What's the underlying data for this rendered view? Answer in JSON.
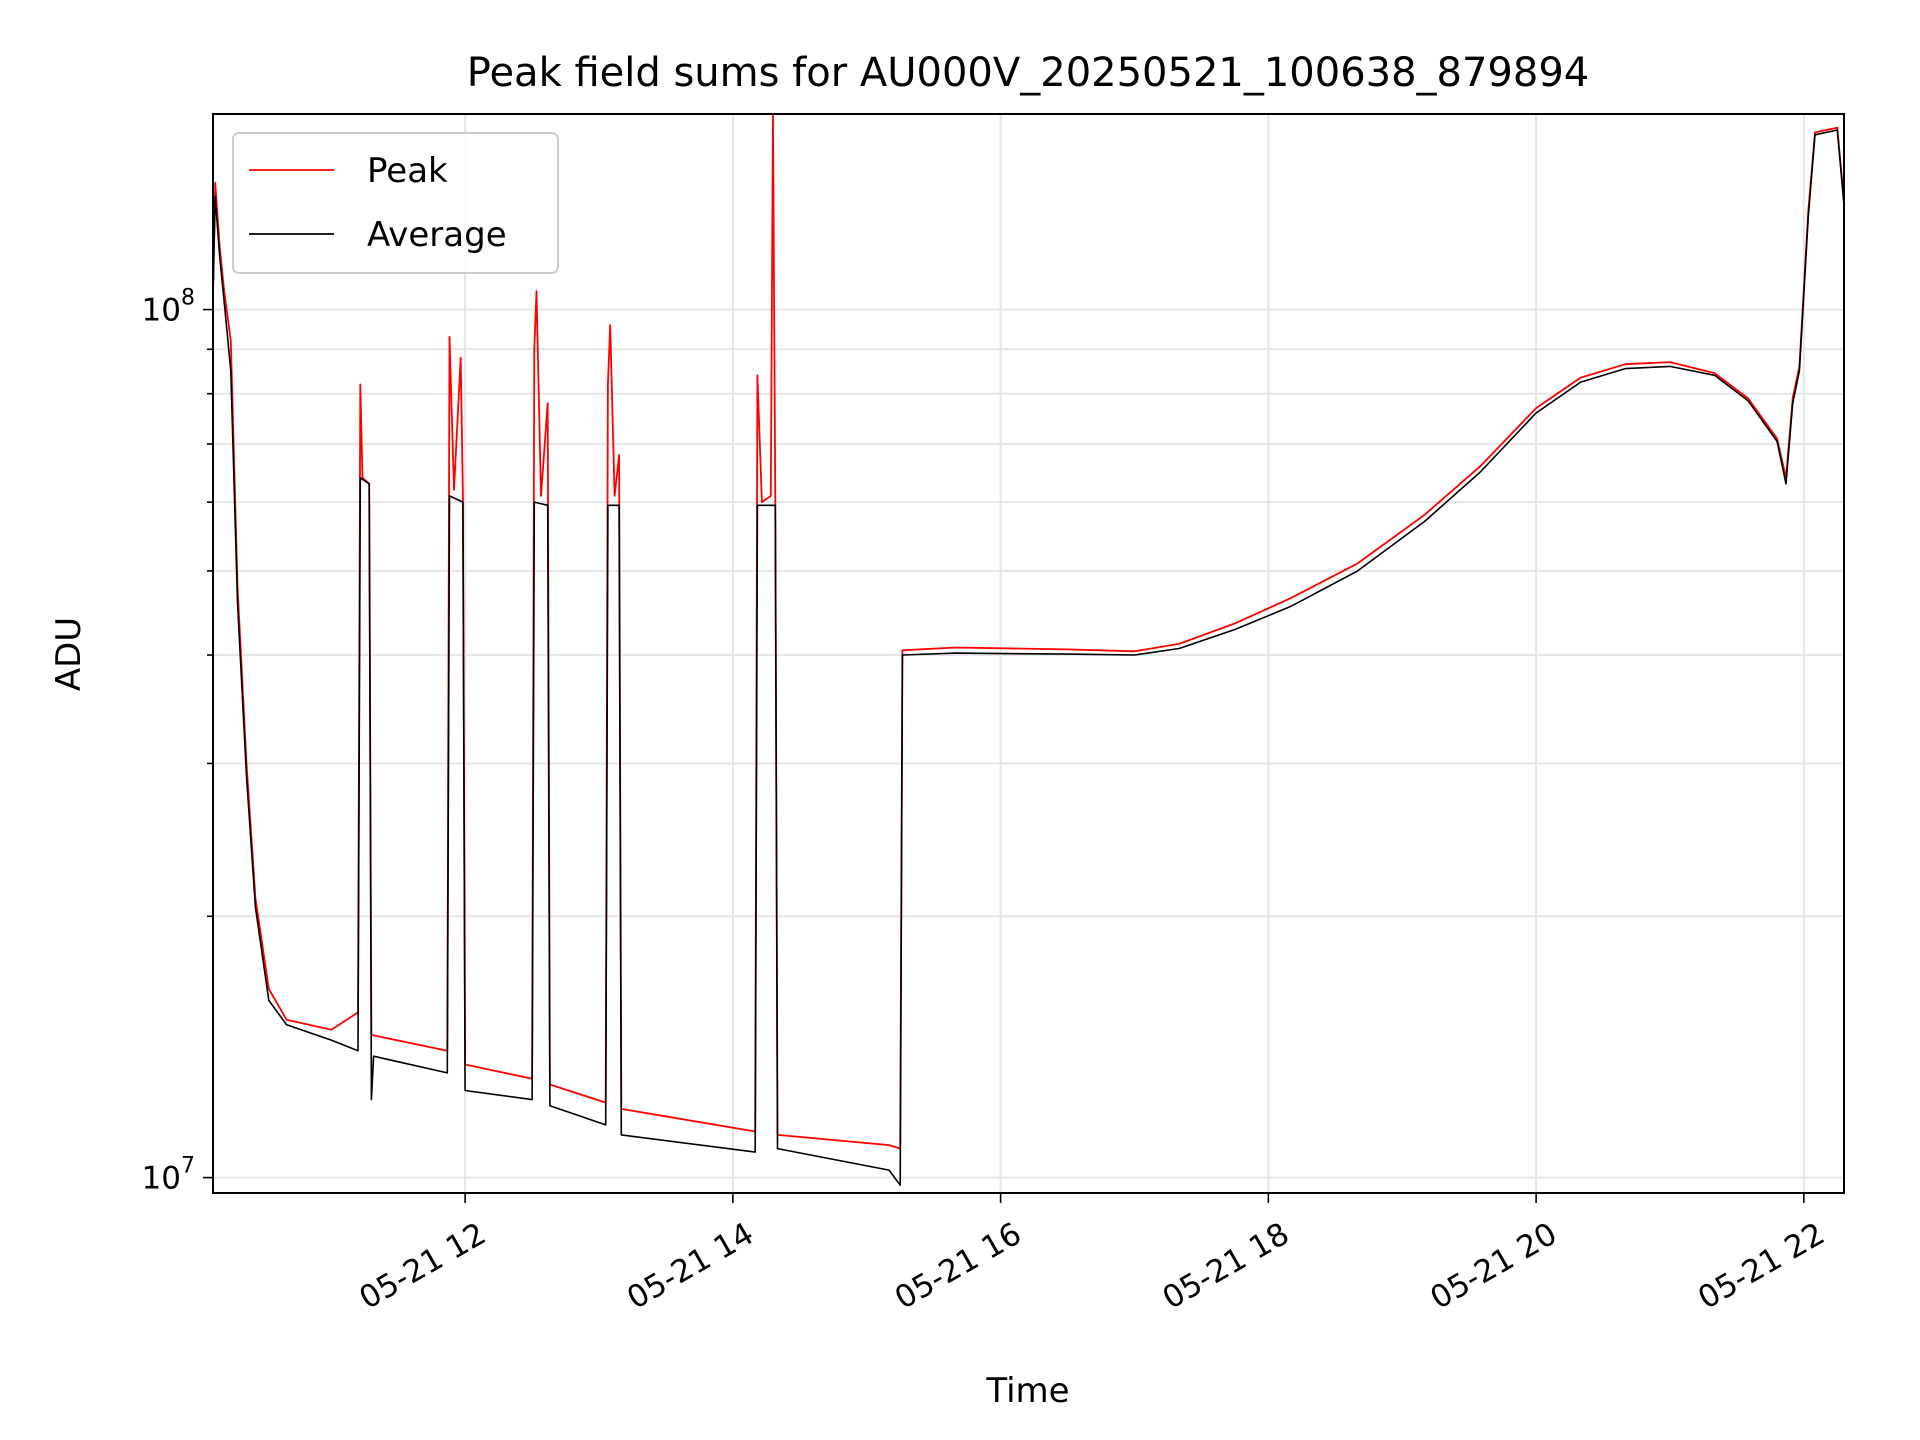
{
  "chart_data": {
    "type": "line",
    "title": "Peak field sums for AU000V_20250521_100638_879894",
    "xlabel": "Time",
    "ylabel": "ADU",
    "yscale": "log",
    "xlim": [
      "05-21 10:07",
      "05-21 22:18"
    ],
    "ylim": [
      9600000,
      168000000
    ],
    "x_ticks": [
      {
        "at": "05-21 12:00",
        "label": "05-21 12"
      },
      {
        "at": "05-21 14:00",
        "label": "05-21 14"
      },
      {
        "at": "05-21 16:00",
        "label": "05-21 16"
      },
      {
        "at": "05-21 18:00",
        "label": "05-21 18"
      },
      {
        "at": "05-21 20:00",
        "label": "05-21 20"
      },
      {
        "at": "05-21 22:00",
        "label": "05-21 22"
      }
    ],
    "y_major_ticks": [
      {
        "value": 10000000,
        "base": "10",
        "exp": "7"
      },
      {
        "value": 100000000,
        "base": "10",
        "exp": "8"
      }
    ],
    "y_minor_ticks": [
      20000000,
      30000000,
      40000000,
      50000000,
      60000000,
      70000000,
      80000000,
      90000000
    ],
    "grid": true,
    "legend": {
      "position": "top-left"
    },
    "series": [
      {
        "name": "Peak",
        "color": "#ff0000",
        "points": [
          [
            "05-21 10:07",
            105000000
          ],
          [
            "05-21 10:08",
            140000000
          ],
          [
            "05-21 10:10",
            118000000
          ],
          [
            "05-21 10:12",
            105000000
          ],
          [
            "05-21 10:15",
            92000000
          ],
          [
            "05-21 10:18",
            48000000
          ],
          [
            "05-21 10:22",
            30000000
          ],
          [
            "05-21 10:26",
            21000000
          ],
          [
            "05-21 10:32",
            16500000
          ],
          [
            "05-21 10:40",
            15200000
          ],
          [
            "05-21 11:00",
            14800000
          ],
          [
            "05-21 11:12",
            15500000
          ],
          [
            "05-21 11:13",
            82000000
          ],
          [
            "05-21 11:14",
            64000000
          ],
          [
            "05-21 11:17",
            63000000
          ],
          [
            "05-21 11:18",
            14600000
          ],
          [
            "05-21 11:52",
            14000000
          ],
          [
            "05-21 11:53",
            93000000
          ],
          [
            "05-21 11:55",
            62000000
          ],
          [
            "05-21 11:58",
            88000000
          ],
          [
            "05-21 11:59",
            61000000
          ],
          [
            "05-21 12:00",
            13500000
          ],
          [
            "05-21 12:30",
            13000000
          ],
          [
            "05-21 12:31",
            90000000
          ],
          [
            "05-21 12:32",
            105000000
          ],
          [
            "05-21 12:34",
            61000000
          ],
          [
            "05-21 12:37",
            78000000
          ],
          [
            "05-21 12:38",
            12800000
          ],
          [
            "05-21 13:03",
            12200000
          ],
          [
            "05-21 13:04",
            82000000
          ],
          [
            "05-21 13:05",
            96000000
          ],
          [
            "05-21 13:07",
            61000000
          ],
          [
            "05-21 13:09",
            68000000
          ],
          [
            "05-21 13:10",
            12000000
          ],
          [
            "05-21 14:10",
            11300000
          ],
          [
            "05-21 14:11",
            84000000
          ],
          [
            "05-21 14:13",
            60000000
          ],
          [
            "05-21 14:17",
            61000000
          ],
          [
            "05-21 14:18",
            168000000
          ],
          [
            "05-21 14:19",
            60000000
          ],
          [
            "05-21 14:20",
            11200000
          ],
          [
            "05-21 15:10",
            10900000
          ],
          [
            "05-21 15:15",
            10800000
          ],
          [
            "05-21 15:16",
            40500000
          ],
          [
            "05-21 15:40",
            40800000
          ],
          [
            "05-21 16:30",
            40600000
          ],
          [
            "05-21 17:00",
            40400000
          ],
          [
            "05-21 17:20",
            41200000
          ],
          [
            "05-21 17:45",
            43500000
          ],
          [
            "05-21 18:10",
            46500000
          ],
          [
            "05-21 18:40",
            51000000
          ],
          [
            "05-21 19:10",
            58000000
          ],
          [
            "05-21 19:35",
            66000000
          ],
          [
            "05-21 20:00",
            77000000
          ],
          [
            "05-21 20:20",
            83500000
          ],
          [
            "05-21 20:40",
            86500000
          ],
          [
            "05-21 21:00",
            87000000
          ],
          [
            "05-21 21:20",
            84500000
          ],
          [
            "05-21 21:35",
            79000000
          ],
          [
            "05-21 21:48",
            71000000
          ],
          [
            "05-21 21:52",
            64000000
          ],
          [
            "05-21 21:55",
            79000000
          ],
          [
            "05-21 21:58",
            86000000
          ],
          [
            "05-21 22:02",
            130000000
          ],
          [
            "05-21 22:05",
            160000000
          ],
          [
            "05-21 22:15",
            162000000
          ],
          [
            "05-21 22:18",
            133000000
          ]
        ]
      },
      {
        "name": "Average",
        "color": "#000000",
        "points": [
          [
            "05-21 10:07",
            103000000
          ],
          [
            "05-21 10:08",
            135000000
          ],
          [
            "05-21 10:10",
            115000000
          ],
          [
            "05-21 10:12",
            102000000
          ],
          [
            "05-21 10:15",
            85000000
          ],
          [
            "05-21 10:18",
            46000000
          ],
          [
            "05-21 10:22",
            29000000
          ],
          [
            "05-21 10:26",
            20500000
          ],
          [
            "05-21 10:32",
            16000000
          ],
          [
            "05-21 10:40",
            15000000
          ],
          [
            "05-21 11:00",
            14400000
          ],
          [
            "05-21 11:12",
            14000000
          ],
          [
            "05-21 11:13",
            64000000
          ],
          [
            "05-21 11:17",
            63000000
          ],
          [
            "05-21 11:18",
            12300000
          ],
          [
            "05-21 11:19",
            13800000
          ],
          [
            "05-21 11:52",
            13200000
          ],
          [
            "05-21 11:53",
            61000000
          ],
          [
            "05-21 11:59",
            60000000
          ],
          [
            "05-21 12:00",
            12600000
          ],
          [
            "05-21 12:30",
            12300000
          ],
          [
            "05-21 12:31",
            60000000
          ],
          [
            "05-21 12:37",
            59500000
          ],
          [
            "05-21 12:38",
            12100000
          ],
          [
            "05-21 13:03",
            11500000
          ],
          [
            "05-21 13:04",
            59500000
          ],
          [
            "05-21 13:09",
            59500000
          ],
          [
            "05-21 13:10",
            11200000
          ],
          [
            "05-21 14:10",
            10700000
          ],
          [
            "05-21 14:11",
            59500000
          ],
          [
            "05-21 14:19",
            59500000
          ],
          [
            "05-21 14:20",
            10800000
          ],
          [
            "05-21 15:10",
            10200000
          ],
          [
            "05-21 15:15",
            9800000
          ],
          [
            "05-21 15:16",
            40000000
          ],
          [
            "05-21 15:40",
            40200000
          ],
          [
            "05-21 16:30",
            40100000
          ],
          [
            "05-21 17:00",
            40000000
          ],
          [
            "05-21 17:20",
            40700000
          ],
          [
            "05-21 17:45",
            42800000
          ],
          [
            "05-21 18:10",
            45500000
          ],
          [
            "05-21 18:40",
            50000000
          ],
          [
            "05-21 19:10",
            57000000
          ],
          [
            "05-21 19:35",
            65000000
          ],
          [
            "05-21 20:00",
            76000000
          ],
          [
            "05-21 20:20",
            82500000
          ],
          [
            "05-21 20:40",
            85500000
          ],
          [
            "05-21 21:00",
            86000000
          ],
          [
            "05-21 21:20",
            84000000
          ],
          [
            "05-21 21:35",
            78500000
          ],
          [
            "05-21 21:48",
            70500000
          ],
          [
            "05-21 21:52",
            63000000
          ],
          [
            "05-21 21:55",
            78000000
          ],
          [
            "05-21 21:58",
            85000000
          ],
          [
            "05-21 22:02",
            128000000
          ],
          [
            "05-21 22:05",
            159000000
          ],
          [
            "05-21 22:15",
            161000000
          ],
          [
            "05-21 22:18",
            132000000
          ]
        ]
      }
    ]
  }
}
